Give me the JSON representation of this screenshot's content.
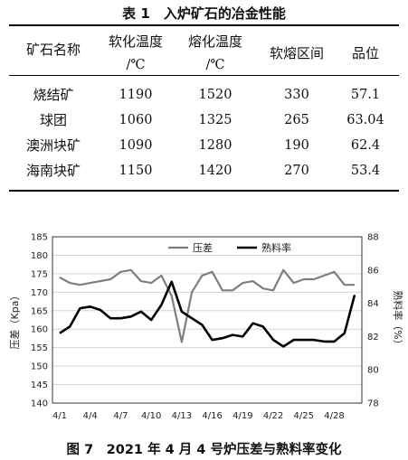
{
  "table": {
    "caption": "表 1　入炉矿石的冶金性能",
    "headers": [
      {
        "line1": "矿石名称",
        "line2": ""
      },
      {
        "line1": "软化温度",
        "line2": "/℃"
      },
      {
        "line1": "熔化温度",
        "line2": "/℃"
      },
      {
        "line1": "软熔区间",
        "line2": ""
      },
      {
        "line1": "品位",
        "line2": ""
      }
    ],
    "rows": [
      [
        "烧结矿",
        "1190",
        "1520",
        "330",
        "57.1"
      ],
      [
        "球团",
        "1060",
        "1325",
        "265",
        "63.04"
      ],
      [
        "澳洲块矿",
        "1090",
        "1280",
        "190",
        "62.4"
      ],
      [
        "海南块矿",
        "1150",
        "1420",
        "270",
        "53.4"
      ]
    ]
  },
  "figure": {
    "caption": "图 7　2021 年 4 月 4 号炉压差与熟料率变化"
  },
  "chart_data": {
    "type": "line",
    "x": [
      "4/1",
      "4/2",
      "4/3",
      "4/4",
      "4/5",
      "4/6",
      "4/7",
      "4/8",
      "4/9",
      "4/10",
      "4/11",
      "4/12",
      "4/13",
      "4/14",
      "4/15",
      "4/16",
      "4/17",
      "4/18",
      "4/19",
      "4/20",
      "4/21",
      "4/22",
      "4/23",
      "4/24",
      "4/25",
      "4/26",
      "4/27",
      "4/28",
      "4/29",
      "4/30"
    ],
    "x_ticks": [
      "4/1",
      "4/4",
      "4/7",
      "4/10",
      "4/13",
      "4/16",
      "4/19",
      "4/22",
      "4/25",
      "4/28"
    ],
    "ylabel_left": "压差（Kpa）",
    "ylabel_right": "熟料率（%）",
    "ylim_left": [
      140,
      185
    ],
    "yticks_left": [
      140,
      145,
      150,
      155,
      160,
      165,
      170,
      175,
      180,
      185
    ],
    "ylim_right": [
      78,
      88
    ],
    "yticks_right": [
      78,
      80,
      82,
      84,
      86,
      88
    ],
    "legend_position": "top-right",
    "series": [
      {
        "name": "压差",
        "axis": "left",
        "color": "#7f7f7f",
        "values": [
          174,
          172.5,
          172,
          172.5,
          173,
          173.5,
          175.5,
          176,
          173,
          172.5,
          174.5,
          169,
          156.5,
          170,
          174.5,
          175.5,
          170.5,
          170.5,
          172.5,
          173,
          171,
          170.5,
          176,
          172.5,
          173.5,
          173.5,
          174.5,
          175.5,
          172,
          172
        ]
      },
      {
        "name": "熟料率",
        "axis": "right",
        "color": "#000000",
        "values": [
          82.2,
          82.6,
          83.7,
          83.8,
          83.6,
          83.1,
          83.1,
          83.2,
          83.5,
          83.0,
          83.9,
          85.3,
          83.5,
          83.1,
          82.7,
          81.8,
          81.9,
          82.1,
          82.0,
          82.8,
          82.6,
          81.8,
          81.4,
          81.8,
          81.8,
          81.8,
          81.7,
          81.7,
          82.2,
          84.5
        ]
      }
    ]
  }
}
